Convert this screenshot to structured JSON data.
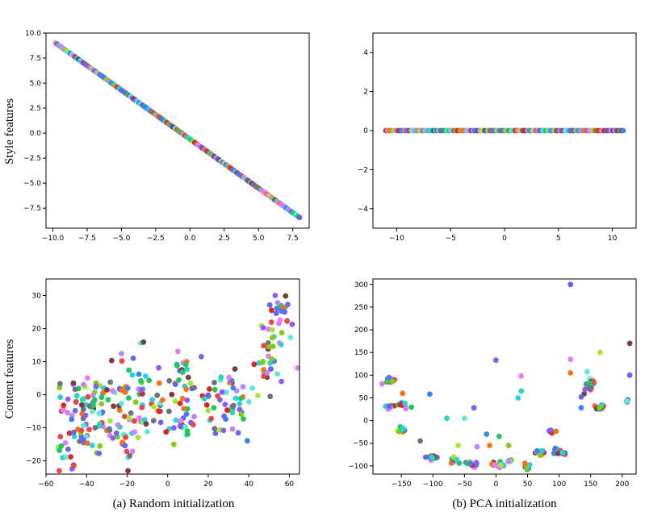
{
  "figure": {
    "row_labels": [
      "Style features",
      "Content features"
    ],
    "captions": [
      "(a) Random initialization",
      "(b) PCA initialization"
    ]
  },
  "palette": [
    "#ef4444",
    "#8b5cf6",
    "#84cc16",
    "#22d3ee",
    "#6b7280",
    "#c084fc",
    "#3b82f6",
    "#f97316",
    "#22c55e",
    "#7c3f3f",
    "#e879f9",
    "#5eead4",
    "#dc2626",
    "#6366f1",
    "#a3e635",
    "#2dd4bf"
  ],
  "chart_data": [
    {
      "type": "scatter",
      "panel": "style-random",
      "xlim": [
        -10.5,
        8.7
      ],
      "ylim": [
        -9.5,
        10.0
      ],
      "xticks": [
        -10.0,
        -7.5,
        -5.0,
        -2.5,
        0.0,
        2.5,
        5.0,
        7.5
      ],
      "yticks": [
        -7.5,
        -5.0,
        -2.5,
        0.0,
        2.5,
        5.0,
        7.5,
        10.0
      ],
      "tick_decimals": 1,
      "line": {
        "x_from": -9.8,
        "x_to": 8.0,
        "slope": -0.98,
        "intercept": -0.6,
        "count": 150
      }
    },
    {
      "type": "scatter",
      "panel": "style-pca",
      "xlim": [
        -12.2,
        12.2
      ],
      "ylim": [
        -5.0,
        5.0
      ],
      "xticks": [
        -10,
        -5,
        0,
        5,
        10
      ],
      "yticks": [
        -4,
        -2,
        0,
        2,
        4
      ],
      "tick_decimals": 0,
      "line": {
        "x_from": -11,
        "x_to": 11,
        "slope": 0,
        "intercept": 0,
        "count": 140
      }
    },
    {
      "type": "scatter",
      "panel": "content-random",
      "xlim": [
        -60,
        65
      ],
      "ylim": [
        -24,
        35
      ],
      "xticks": [
        -60,
        -40,
        -20,
        0,
        20,
        40,
        60
      ],
      "yticks": [
        -20,
        -10,
        0,
        10,
        20,
        30
      ],
      "tick_decimals": 0,
      "clusters": [
        {
          "x": -45,
          "y": -12,
          "sx": 6,
          "sy": 6,
          "n": 45
        },
        {
          "x": -35,
          "y": -4,
          "sx": 6,
          "sy": 6,
          "n": 35
        },
        {
          "x": -48,
          "y": 2,
          "sx": 4,
          "sy": 3,
          "n": 12
        },
        {
          "x": -22,
          "y": -12,
          "sx": 5,
          "sy": 5,
          "n": 30
        },
        {
          "x": -18,
          "y": 2,
          "sx": 6,
          "sy": 5,
          "n": 30
        },
        {
          "x": -8,
          "y": -4,
          "sx": 5,
          "sy": 5,
          "n": 25
        },
        {
          "x": 5,
          "y": 6,
          "sx": 3,
          "sy": 4,
          "n": 18
        },
        {
          "x": 8,
          "y": -8,
          "sx": 4,
          "sy": 4,
          "n": 20
        },
        {
          "x": 20,
          "y": -2,
          "sx": 6,
          "sy": 6,
          "n": 35
        },
        {
          "x": 32,
          "y": -2,
          "sx": 5,
          "sy": 6,
          "n": 30
        },
        {
          "x": 50,
          "y": 10,
          "sx": 5,
          "sy": 5,
          "n": 25
        },
        {
          "x": 53,
          "y": 22,
          "sx": 4,
          "sy": 5,
          "n": 30
        }
      ]
    },
    {
      "type": "scatter",
      "panel": "content-pca",
      "xlim": [
        -195,
        222
      ],
      "ylim": [
        -118,
        312
      ],
      "xticks": [
        -150,
        -100,
        -50,
        0,
        50,
        100,
        150,
        200
      ],
      "yticks": [
        -100,
        -50,
        0,
        50,
        100,
        150,
        200,
        250,
        300
      ],
      "tick_decimals": 0,
      "clusters": [
        {
          "x": -168,
          "y": 88,
          "sx": 6,
          "sy": 4,
          "n": 20
        },
        {
          "x": -172,
          "y": 32,
          "sx": 4,
          "sy": 4,
          "n": 8
        },
        {
          "x": -148,
          "y": 35,
          "sx": 5,
          "sy": 5,
          "n": 12
        },
        {
          "x": -150,
          "y": -22,
          "sx": 4,
          "sy": 3,
          "n": 10
        },
        {
          "x": -103,
          "y": -82,
          "sx": 5,
          "sy": 3,
          "n": 14
        },
        {
          "x": -68,
          "y": -88,
          "sx": 5,
          "sy": 3,
          "n": 10
        },
        {
          "x": -35,
          "y": -98,
          "sx": 6,
          "sy": 3,
          "n": 14
        },
        {
          "x": 0,
          "y": -98,
          "sx": 6,
          "sy": 3,
          "n": 14
        },
        {
          "x": 25,
          "y": -90,
          "sx": 4,
          "sy": 3,
          "n": 8
        },
        {
          "x": 50,
          "y": -102,
          "sx": 3,
          "sy": 3,
          "n": 8
        },
        {
          "x": 70,
          "y": -72,
          "sx": 5,
          "sy": 3,
          "n": 10
        },
        {
          "x": 100,
          "y": -68,
          "sx": 6,
          "sy": 4,
          "n": 12
        },
        {
          "x": 90,
          "y": -25,
          "sx": 4,
          "sy": 3,
          "n": 8
        },
        {
          "x": 150,
          "y": 80,
          "sx": 6,
          "sy": 10,
          "n": 20
        },
        {
          "x": 165,
          "y": 30,
          "sx": 4,
          "sy": 4,
          "n": 12
        },
        {
          "x": 205,
          "y": 42,
          "sx": 2,
          "sy": 2,
          "n": 4
        }
      ],
      "points": [
        [
          118,
          300
        ],
        [
          0,
          133
        ],
        [
          212,
          170
        ],
        [
          212,
          100
        ],
        [
          165,
          150
        ],
        [
          118,
          135
        ],
        [
          118,
          105
        ],
        [
          40,
          98
        ],
        [
          40,
          65
        ],
        [
          35,
          50
        ],
        [
          -105,
          58
        ],
        [
          -78,
          5
        ],
        [
          -50,
          5
        ],
        [
          -35,
          28
        ],
        [
          -60,
          -55
        ],
        [
          -30,
          -58
        ],
        [
          -15,
          -30
        ],
        [
          5,
          -35
        ],
        [
          -148,
          60
        ],
        [
          -120,
          -45
        ],
        [
          135,
          52
        ],
        [
          135,
          28
        ],
        [
          -10,
          -55
        ],
        [
          20,
          -55
        ]
      ]
    }
  ]
}
